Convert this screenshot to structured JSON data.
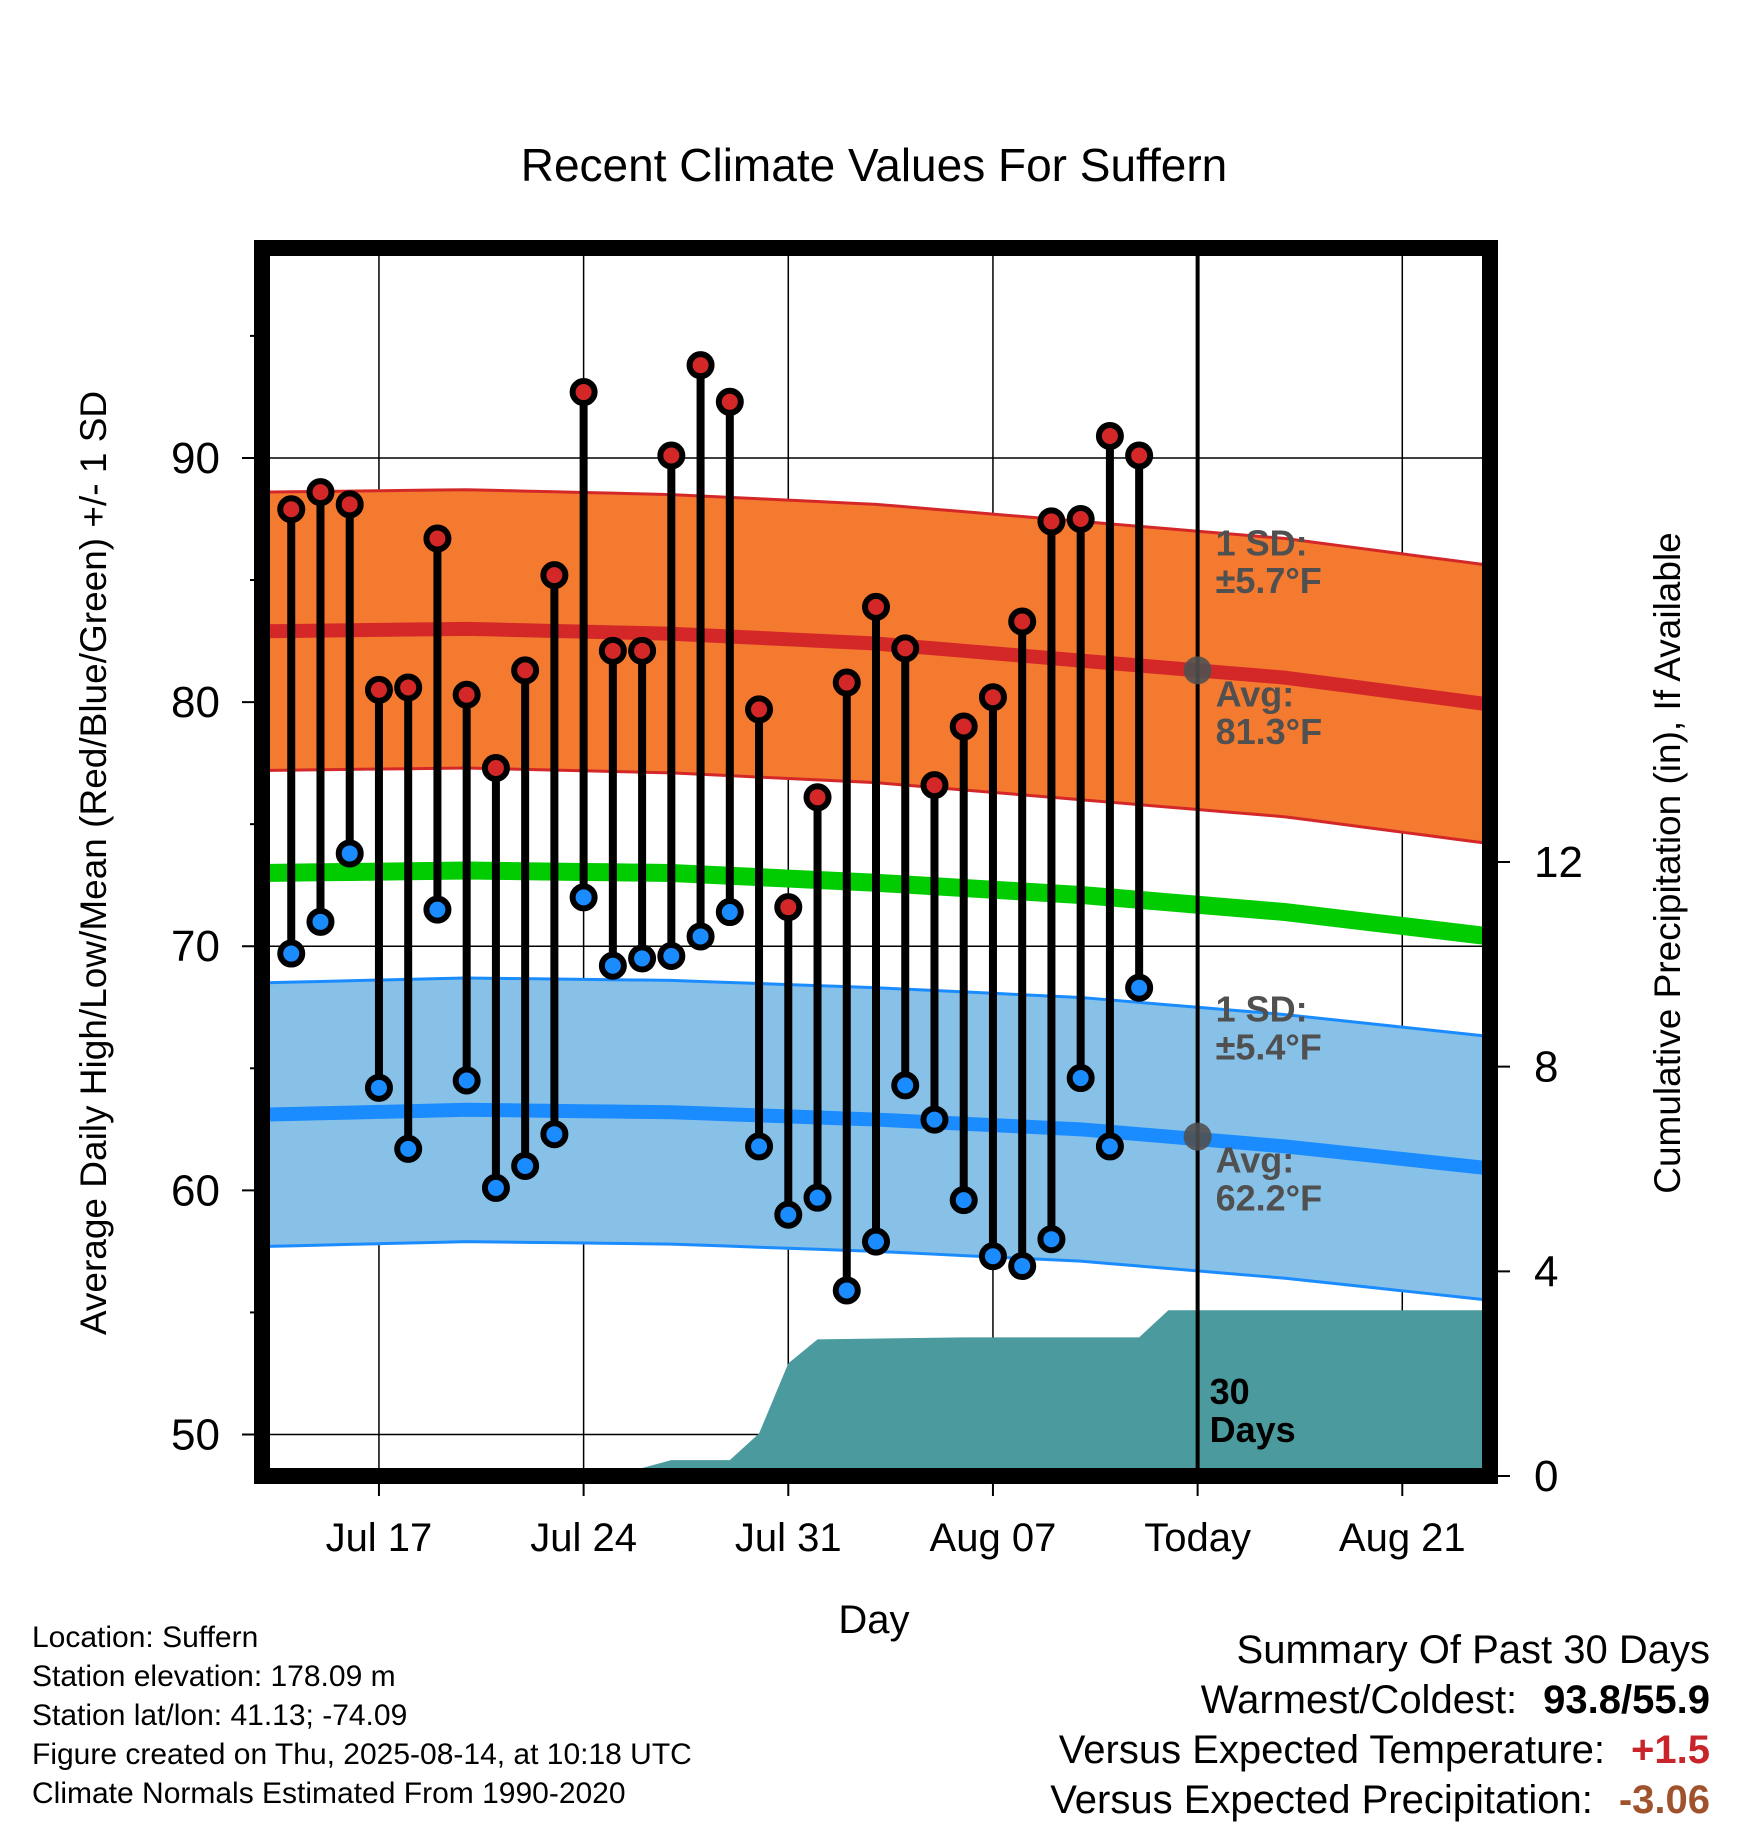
{
  "chart_data": {
    "type": "line",
    "title": "Recent Climate Values For Suffern",
    "xlabel": "Day",
    "ylabel": "Average Daily High/Low/Mean (Red/Blue/Green) +/- 1 SD",
    "y2label": "Cumulative Precipitation (in), If Available",
    "x_tick_labels": [
      "Jul 17",
      "Jul 24",
      "Jul 31",
      "Aug 07",
      "Today",
      "Aug 21"
    ],
    "y_ticks": [
      50,
      60,
      70,
      80,
      90
    ],
    "y2_ticks": [
      0,
      4,
      8,
      12
    ],
    "ylim": [
      48.3,
      98.6
    ],
    "y2lim": [
      0,
      24
    ],
    "xlim": [
      "2025-07-13",
      "2025-08-24"
    ],
    "today": "2025-08-14",
    "daily_observations": {
      "dates": [
        "2025-07-14",
        "2025-07-15",
        "2025-07-16",
        "2025-07-17",
        "2025-07-18",
        "2025-07-19",
        "2025-07-20",
        "2025-07-21",
        "2025-07-22",
        "2025-07-23",
        "2025-07-24",
        "2025-07-25",
        "2025-07-26",
        "2025-07-27",
        "2025-07-28",
        "2025-07-29",
        "2025-07-30",
        "2025-07-31",
        "2025-08-01",
        "2025-08-02",
        "2025-08-03",
        "2025-08-04",
        "2025-08-05",
        "2025-08-06",
        "2025-08-07",
        "2025-08-08",
        "2025-08-09",
        "2025-08-10",
        "2025-08-11",
        "2025-08-12",
        "2025-08-13"
      ],
      "high": [
        87.9,
        88.6,
        88.1,
        80.5,
        80.6,
        86.7,
        80.3,
        77.3,
        81.3,
        85.2,
        92.7,
        82.1,
        82.1,
        90.1,
        93.8,
        92.3,
        79.7,
        71.6,
        76.1,
        80.8,
        83.9,
        82.2,
        76.6,
        79.0,
        80.2,
        83.3,
        87.4,
        87.5,
        90.9,
        90.1,
        null
      ],
      "low": [
        69.7,
        71.0,
        73.8,
        64.2,
        61.7,
        71.5,
        64.5,
        60.1,
        61.0,
        62.3,
        72.0,
        69.2,
        69.5,
        69.6,
        70.4,
        71.4,
        61.8,
        59.0,
        59.7,
        55.9,
        57.9,
        64.3,
        62.9,
        59.6,
        57.3,
        56.9,
        58.0,
        64.6,
        61.8,
        68.3,
        null
      ]
    },
    "normal_high": {
      "dates": [
        "2025-07-13",
        "2025-07-20",
        "2025-07-27",
        "2025-08-03",
        "2025-08-10",
        "2025-08-17",
        "2025-08-24"
      ],
      "mean": [
        82.9,
        83.0,
        82.8,
        82.4,
        81.7,
        81.0,
        79.9
      ],
      "sd": 5.7
    },
    "normal_low": {
      "dates": [
        "2025-07-13",
        "2025-07-20",
        "2025-07-27",
        "2025-08-03",
        "2025-08-10",
        "2025-08-17",
        "2025-08-24"
      ],
      "mean": [
        63.1,
        63.3,
        63.2,
        62.9,
        62.5,
        61.8,
        60.9
      ],
      "sd": 5.4
    },
    "normal_mean": {
      "dates": [
        "2025-07-13",
        "2025-07-20",
        "2025-07-27",
        "2025-08-03",
        "2025-08-10",
        "2025-08-17",
        "2025-08-24"
      ],
      "values": [
        73.0,
        73.1,
        73.0,
        72.6,
        72.1,
        71.4,
        70.4
      ]
    },
    "cumulative_precip": {
      "dates": [
        "2025-07-25",
        "2025-07-27",
        "2025-07-29",
        "2025-07-30",
        "2025-07-31",
        "2025-08-01",
        "2025-08-06",
        "2025-08-12",
        "2025-08-13",
        "2025-08-24"
      ],
      "values": [
        0,
        0.31,
        0.31,
        0.83,
        2.2,
        2.67,
        2.71,
        2.71,
        3.24,
        3.24
      ]
    },
    "annotations": {
      "high_sd": "1 SD:\n±5.7°F",
      "high_avg": "Avg:\n81.3°F",
      "high_avg_value": 81.3,
      "low_sd": "1 SD:\n±5.4°F",
      "low_avg": "Avg:\n62.2°F",
      "low_avg_value": 62.2,
      "period": "30\nDays"
    },
    "colors": {
      "high_band": "#f47a30",
      "high_line": "#d42828",
      "low_band": "#87c1e8",
      "low_line": "#1a8cff",
      "mean_line": "#00cc00",
      "precip": "#4a9a9e",
      "high_dot": "#d42828",
      "low_dot": "#1a8cff",
      "annotation": "#505050"
    }
  },
  "info": {
    "location": "Location: Suffern",
    "elevation": "Station elevation: 178.09 m",
    "latlon": "Station lat/lon: 41.13; -74.09",
    "created": "Figure created on Thu, 2025-08-14, at 10:18 UTC",
    "normals": "Climate Normals Estimated From 1990-2020"
  },
  "summary": {
    "title": "Summary Of Past 30 Days",
    "warmest_coldest_label": "Warmest/Coldest:",
    "warmest_coldest_value": "93.8/55.9",
    "temp_label": "Versus Expected Temperature:",
    "temp_value": "+1.5",
    "precip_label": "Versus Expected Precipitation:",
    "precip_value": "-3.06"
  }
}
